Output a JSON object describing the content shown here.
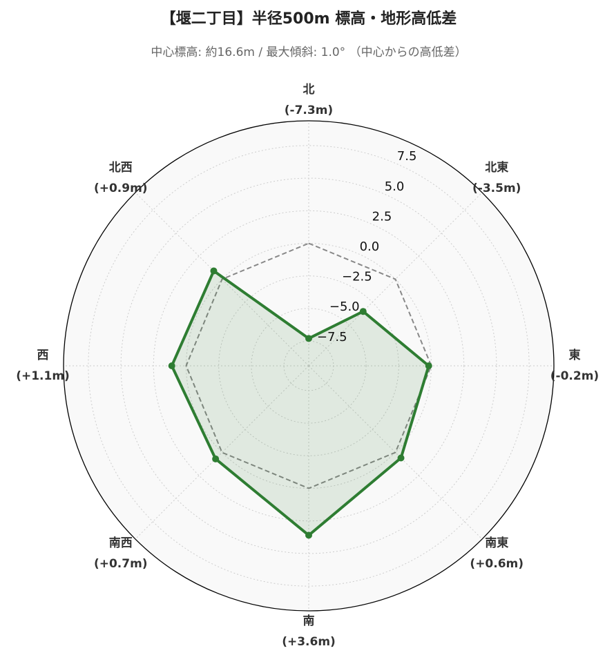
{
  "chart_data": {
    "type": "radar",
    "title": "【堰二丁目】半径500m 標高・地形高低差",
    "subtitle": "中心標高: 約16.6m / 最大傾斜: 1.0° （中心からの高低差）",
    "categories": [
      "北",
      "北東",
      "東",
      "南東",
      "南",
      "南西",
      "西",
      "北西"
    ],
    "values": [
      -7.3,
      -3.5,
      -0.2,
      0.6,
      3.6,
      0.7,
      1.1,
      0.9
    ],
    "value_labels": [
      "(-7.3m)",
      "(-3.5m)",
      "(-0.2m)",
      "(+0.6m)",
      "(+3.6m)",
      "(+0.7m)",
      "(+1.1m)",
      "(+0.9m)"
    ],
    "color": "#2e7d32",
    "reference": 0,
    "ylim": [
      -9.4,
      9.4
    ],
    "yticks": [
      {
        "value": -7.5,
        "label": "−7.5"
      },
      {
        "value": -5,
        "label": "−5.0"
      },
      {
        "value": -2.5,
        "label": "−2.5"
      },
      {
        "value": 0,
        "label": "0.0"
      },
      2.5,
      {
        "value": 5,
        "label": "5.0"
      },
      7.5
    ],
    "grid": true
  }
}
